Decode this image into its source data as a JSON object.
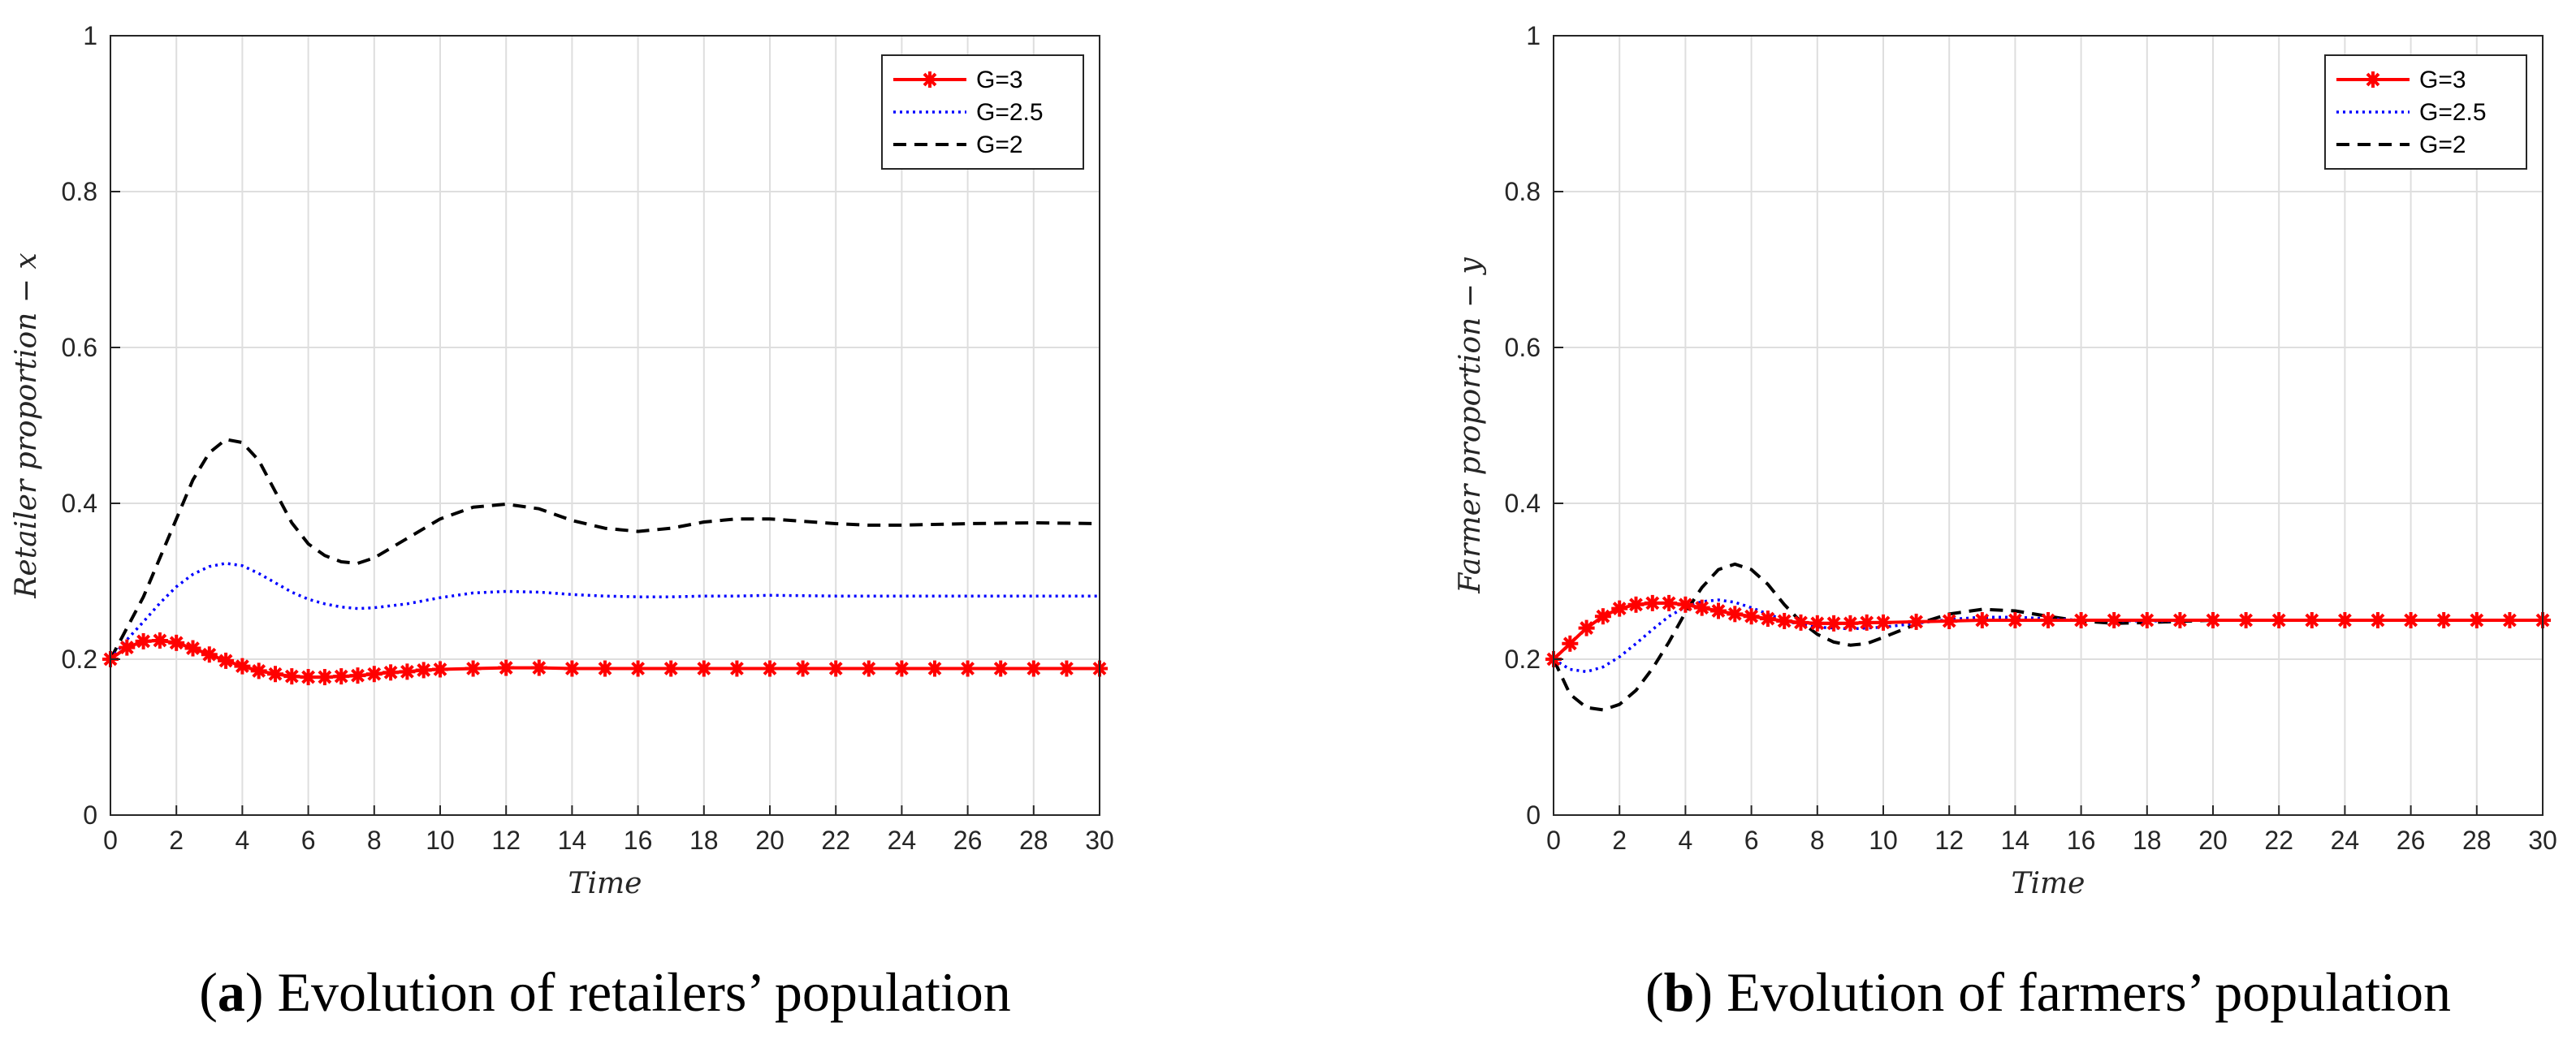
{
  "chart_data": [
    {
      "type": "line",
      "panel_label": "a",
      "caption": "Evolution of retailers’ population",
      "xlabel": "Time",
      "ylabel": "Retailer proportion − x",
      "xlim": [
        0,
        30
      ],
      "ylim": [
        0,
        1
      ],
      "xticks": [
        "0",
        "2",
        "4",
        "6",
        "8",
        "10",
        "12",
        "14",
        "16",
        "18",
        "20",
        "22",
        "24",
        "26",
        "28",
        "30"
      ],
      "yticks": [
        "0",
        "0.2",
        "0.4",
        "0.6",
        "0.8",
        "1"
      ],
      "grid": true,
      "legend_position": "top-right",
      "series": [
        {
          "name": "G=3",
          "color": "#ff0000",
          "style": "solid-star",
          "x": [
            0,
            0.5,
            1,
            1.5,
            2,
            2.5,
            3,
            3.5,
            4,
            4.5,
            5,
            5.5,
            6,
            6.5,
            7,
            7.5,
            8,
            8.5,
            9,
            9.5,
            10,
            11,
            12,
            13,
            14,
            15,
            16,
            17,
            18,
            19,
            20,
            21,
            22,
            23,
            24,
            25,
            26,
            27,
            28,
            29,
            30
          ],
          "y": [
            0.2,
            0.215,
            0.223,
            0.224,
            0.221,
            0.214,
            0.206,
            0.198,
            0.191,
            0.185,
            0.181,
            0.178,
            0.177,
            0.177,
            0.178,
            0.179,
            0.181,
            0.183,
            0.184,
            0.186,
            0.187,
            0.188,
            0.189,
            0.189,
            0.188,
            0.188,
            0.188,
            0.188,
            0.188,
            0.188,
            0.188,
            0.188,
            0.188,
            0.188,
            0.188,
            0.188,
            0.188,
            0.188,
            0.188,
            0.188,
            0.188
          ]
        },
        {
          "name": "G=2.5",
          "color": "#0000ff",
          "style": "dotted",
          "x": [
            0,
            0.5,
            1,
            1.5,
            2,
            2.5,
            3,
            3.5,
            4,
            4.5,
            5,
            5.5,
            6,
            6.5,
            7,
            7.5,
            8,
            9,
            10,
            11,
            12,
            13,
            14,
            15,
            16,
            17,
            18,
            19,
            20,
            22,
            24,
            26,
            28,
            30
          ],
          "y": [
            0.2,
            0.225,
            0.248,
            0.272,
            0.293,
            0.309,
            0.319,
            0.323,
            0.32,
            0.31,
            0.298,
            0.286,
            0.277,
            0.271,
            0.267,
            0.265,
            0.266,
            0.271,
            0.279,
            0.285,
            0.287,
            0.286,
            0.283,
            0.281,
            0.28,
            0.28,
            0.281,
            0.281,
            0.282,
            0.281,
            0.281,
            0.281,
            0.281,
            0.281
          ]
        },
        {
          "name": "G=2",
          "color": "#000000",
          "style": "dashed",
          "x": [
            0,
            0.5,
            1,
            1.5,
            2,
            2.5,
            3,
            3.5,
            4,
            4.5,
            5,
            5.5,
            6,
            6.5,
            7,
            7.5,
            8,
            9,
            10,
            11,
            12,
            13,
            14,
            15,
            16,
            17,
            18,
            19,
            20,
            21,
            22,
            23,
            24,
            26,
            28,
            30
          ],
          "y": [
            0.2,
            0.24,
            0.28,
            0.33,
            0.38,
            0.43,
            0.465,
            0.482,
            0.478,
            0.455,
            0.415,
            0.375,
            0.348,
            0.333,
            0.325,
            0.323,
            0.33,
            0.355,
            0.38,
            0.395,
            0.399,
            0.393,
            0.378,
            0.368,
            0.364,
            0.368,
            0.376,
            0.38,
            0.38,
            0.377,
            0.374,
            0.372,
            0.372,
            0.374,
            0.375,
            0.374
          ]
        }
      ]
    },
    {
      "type": "line",
      "panel_label": "b",
      "caption": "Evolution of farmers’ population",
      "xlabel": "Time",
      "ylabel": "Farmer proportion − y",
      "xlim": [
        0,
        30
      ],
      "ylim": [
        0,
        1
      ],
      "xticks": [
        "0",
        "2",
        "4",
        "6",
        "8",
        "10",
        "12",
        "14",
        "16",
        "18",
        "20",
        "22",
        "24",
        "26",
        "28",
        "30"
      ],
      "yticks": [
        "0",
        "0.2",
        "0.4",
        "0.6",
        "0.8",
        "1"
      ],
      "grid": true,
      "legend_position": "top-right",
      "series": [
        {
          "name": "G=3",
          "color": "#ff0000",
          "style": "solid-star",
          "x": [
            0,
            0.5,
            1,
            1.5,
            2,
            2.5,
            3,
            3.5,
            4,
            4.5,
            5,
            5.5,
            6,
            6.5,
            7,
            7.5,
            8,
            8.5,
            9,
            9.5,
            10,
            11,
            12,
            13,
            14,
            15,
            16,
            17,
            18,
            19,
            20,
            21,
            22,
            23,
            24,
            25,
            26,
            27,
            28,
            29,
            30
          ],
          "y": [
            0.2,
            0.22,
            0.24,
            0.255,
            0.265,
            0.27,
            0.272,
            0.272,
            0.27,
            0.266,
            0.262,
            0.258,
            0.255,
            0.252,
            0.249,
            0.247,
            0.246,
            0.246,
            0.246,
            0.247,
            0.247,
            0.248,
            0.249,
            0.25,
            0.25,
            0.25,
            0.25,
            0.25,
            0.25,
            0.25,
            0.25,
            0.25,
            0.25,
            0.25,
            0.25,
            0.25,
            0.25,
            0.25,
            0.25,
            0.25,
            0.25
          ]
        },
        {
          "name": "G=2.5",
          "color": "#0000ff",
          "style": "dotted",
          "x": [
            0,
            0.5,
            1,
            1.5,
            2,
            2.5,
            3,
            3.5,
            4,
            4.5,
            5,
            5.5,
            6,
            6.5,
            7,
            7.5,
            8,
            9,
            10,
            11,
            12,
            13,
            14,
            15,
            16,
            18,
            20,
            22,
            24,
            26,
            28,
            30
          ],
          "y": [
            0.2,
            0.187,
            0.184,
            0.19,
            0.203,
            0.22,
            0.238,
            0.255,
            0.267,
            0.274,
            0.276,
            0.273,
            0.266,
            0.258,
            0.25,
            0.244,
            0.241,
            0.239,
            0.241,
            0.246,
            0.251,
            0.254,
            0.254,
            0.252,
            0.25,
            0.249,
            0.25,
            0.25,
            0.25,
            0.25,
            0.25,
            0.25
          ]
        },
        {
          "name": "G=2",
          "color": "#000000",
          "style": "dashed",
          "x": [
            0,
            0.5,
            1,
            1.5,
            2,
            2.5,
            3,
            3.5,
            4,
            4.5,
            5,
            5.5,
            6,
            6.5,
            7,
            7.5,
            8,
            8.5,
            9,
            9.5,
            10,
            11,
            12,
            13,
            14,
            15,
            16,
            17,
            18,
            20,
            22,
            24,
            26,
            28,
            30
          ],
          "y": [
            0.2,
            0.155,
            0.138,
            0.135,
            0.142,
            0.16,
            0.188,
            0.222,
            0.26,
            0.292,
            0.315,
            0.322,
            0.315,
            0.296,
            0.27,
            0.248,
            0.232,
            0.222,
            0.218,
            0.22,
            0.228,
            0.245,
            0.258,
            0.264,
            0.262,
            0.255,
            0.249,
            0.246,
            0.247,
            0.25,
            0.25,
            0.25,
            0.25,
            0.25,
            0.25
          ]
        }
      ]
    }
  ]
}
